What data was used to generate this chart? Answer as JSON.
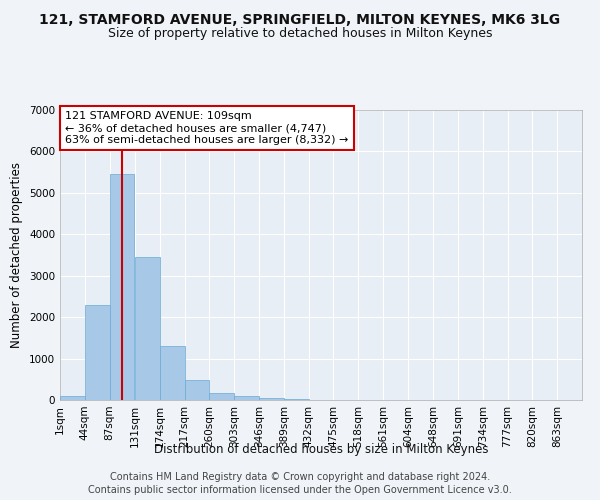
{
  "title": "121, STAMFORD AVENUE, SPRINGFIELD, MILTON KEYNES, MK6 3LG",
  "subtitle": "Size of property relative to detached houses in Milton Keynes",
  "xlabel": "Distribution of detached houses by size in Milton Keynes",
  "ylabel": "Number of detached properties",
  "bin_labels": [
    "1sqm",
    "44sqm",
    "87sqm",
    "131sqm",
    "174sqm",
    "217sqm",
    "260sqm",
    "303sqm",
    "346sqm",
    "389sqm",
    "432sqm",
    "475sqm",
    "518sqm",
    "561sqm",
    "604sqm",
    "648sqm",
    "691sqm",
    "734sqm",
    "777sqm",
    "820sqm",
    "863sqm"
  ],
  "bin_edges": [
    1,
    44,
    87,
    131,
    174,
    217,
    260,
    303,
    346,
    389,
    432,
    475,
    518,
    561,
    604,
    648,
    691,
    734,
    777,
    820,
    863
  ],
  "bar_heights": [
    100,
    2290,
    5450,
    3450,
    1300,
    480,
    160,
    90,
    60,
    30,
    10,
    5,
    2,
    1,
    0,
    0,
    0,
    0,
    0,
    0
  ],
  "bar_color": "#a8c8e8",
  "bar_edge_color": "#6aaad4",
  "ylim": [
    0,
    7000
  ],
  "yticks": [
    0,
    1000,
    2000,
    3000,
    4000,
    5000,
    6000,
    7000
  ],
  "property_size": 109,
  "vline_color": "#cc0000",
  "annotation_line1": "121 STAMFORD AVENUE: 109sqm",
  "annotation_line2": "← 36% of detached houses are smaller (4,747)",
  "annotation_line3": "63% of semi-detached houses are larger (8,332) →",
  "annotation_box_color": "#cc0000",
  "annotation_text_color": "#000000",
  "footer_line1": "Contains HM Land Registry data © Crown copyright and database right 2024.",
  "footer_line2": "Contains public sector information licensed under the Open Government Licence v3.0.",
  "bg_color": "#e8eef5",
  "grid_color": "#ffffff",
  "fig_bg_color": "#f0f4f8",
  "title_fontsize": 10,
  "subtitle_fontsize": 9,
  "axis_label_fontsize": 8.5,
  "tick_fontsize": 7.5,
  "annotation_fontsize": 8,
  "footer_fontsize": 7
}
